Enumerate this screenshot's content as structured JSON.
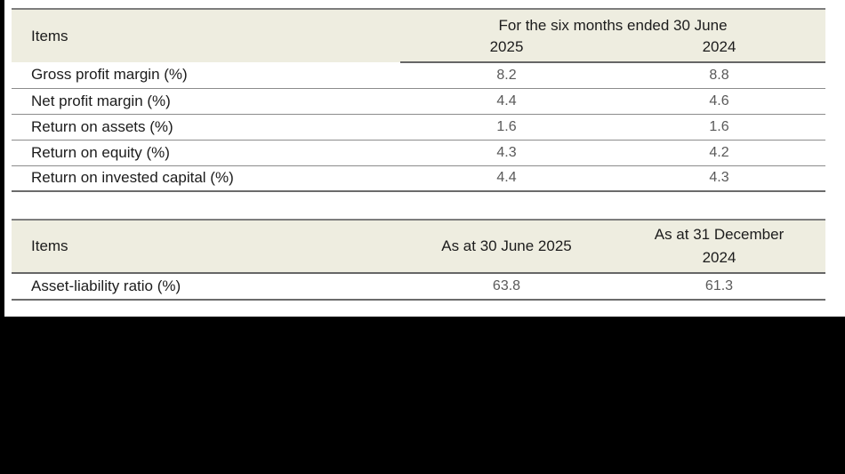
{
  "colors": {
    "header_background": "#eeede0",
    "outer_border": "#7d7d7d",
    "header_underline": "#666666",
    "row_rule": "#8c8c8c",
    "label_text": "#1c1c1c",
    "value_text": "#595959",
    "black_band": "#000000"
  },
  "table1": {
    "items_header": "Items",
    "period_header": "For the six months ended 30 June",
    "col_headers": {
      "y2025": "2025",
      "y2024": "2024"
    },
    "rows": [
      {
        "label": "Gross profit margin (%)",
        "v2025": "8.2",
        "v2024": "8.8"
      },
      {
        "label": "Net profit margin (%)",
        "v2025": "4.4",
        "v2024": "4.6"
      },
      {
        "label": "Return on assets (%)",
        "v2025": "1.6",
        "v2024": "1.6"
      },
      {
        "label": "Return on equity (%)",
        "v2025": "4.3",
        "v2024": "4.2"
      },
      {
        "label": "Return on invested capital (%)",
        "v2025": "4.4",
        "v2024": "4.3"
      }
    ]
  },
  "table2": {
    "items_header": "Items",
    "col_headers": {
      "c1": "As at 30 June 2025",
      "c2": "As at 31 December 2024"
    },
    "rows": [
      {
        "label": "Asset-liability ratio (%)",
        "v1": "63.8",
        "v2": "61.3"
      }
    ]
  }
}
